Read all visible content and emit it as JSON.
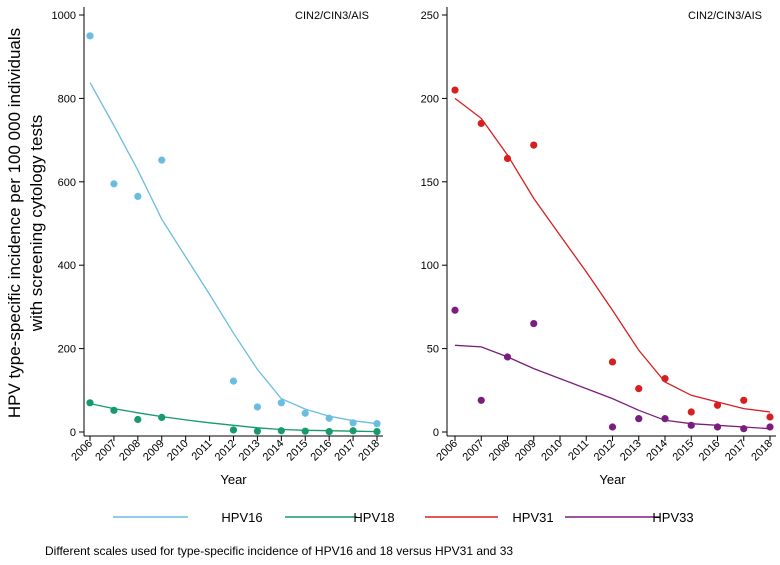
{
  "y_axis_title_line1": "HPV type-specific incidence per 100 000 individuals",
  "y_axis_title_line2": "with screening cytology tests",
  "footnote": "Different scales used for type-specific incidence of HPV16 and 18 versus HPV31 and 33",
  "colors": {
    "HPV16": "#6bbde0",
    "HPV18": "#159a6b",
    "HPV31": "#d71f1f",
    "HPV33": "#7a1e7e"
  },
  "legend": [
    "HPV16",
    "HPV18",
    "HPV31",
    "HPV33"
  ],
  "chart_data": [
    {
      "type": "scatter",
      "title": "CIN2/CIN3/AIS",
      "xlabel": "Year",
      "ylabel": "",
      "categories": [
        "2006",
        "2007",
        "2008",
        "2009",
        "2010",
        "2011",
        "2012",
        "2013",
        "2014",
        "2015",
        "2016",
        "2017",
        "2018"
      ],
      "ylim": [
        0,
        1000
      ],
      "yticks": [
        0,
        200,
        400,
        600,
        800,
        1000
      ],
      "series": [
        {
          "name": "HPV16",
          "points": [
            [
              2006,
              950
            ],
            [
              2007,
              595
            ],
            [
              2008,
              565
            ],
            [
              2009,
              652
            ],
            [
              2012,
              122
            ],
            [
              2013,
              60
            ],
            [
              2014,
              70
            ],
            [
              2015,
              45
            ],
            [
              2016,
              33
            ],
            [
              2017,
              22
            ],
            [
              2018,
              20
            ]
          ],
          "fit": [
            [
              2006,
              838
            ],
            [
              2007,
              735
            ],
            [
              2008,
              628
            ],
            [
              2009,
              510
            ],
            [
              2010,
              420
            ],
            [
              2011,
              330
            ],
            [
              2012,
              237
            ],
            [
              2013,
              150
            ],
            [
              2014,
              80
            ],
            [
              2015,
              55
            ],
            [
              2016,
              38
            ],
            [
              2017,
              27
            ],
            [
              2018,
              20
            ]
          ]
        },
        {
          "name": "HPV18",
          "points": [
            [
              2006,
              70
            ],
            [
              2007,
              52
            ],
            [
              2008,
              30
            ],
            [
              2009,
              35
            ],
            [
              2012,
              5
            ],
            [
              2013,
              2
            ],
            [
              2014,
              3
            ],
            [
              2015,
              2
            ],
            [
              2016,
              1
            ],
            [
              2017,
              3
            ],
            [
              2018,
              1
            ]
          ],
          "fit": [
            [
              2006,
              68
            ],
            [
              2007,
              56
            ],
            [
              2008,
              46
            ],
            [
              2009,
              37
            ],
            [
              2010,
              29
            ],
            [
              2011,
              22
            ],
            [
              2012,
              16
            ],
            [
              2013,
              10
            ],
            [
              2014,
              6
            ],
            [
              2015,
              4
            ],
            [
              2016,
              3
            ],
            [
              2017,
              2
            ],
            [
              2018,
              1
            ]
          ]
        }
      ]
    },
    {
      "type": "scatter",
      "title": "CIN2/CIN3/AIS",
      "xlabel": "Year",
      "ylabel": "",
      "categories": [
        "2006",
        "2007",
        "2008",
        "2009",
        "2010",
        "2011",
        "2012",
        "2013",
        "2014",
        "2015",
        "2016",
        "2017",
        "2018"
      ],
      "ylim": [
        0,
        250
      ],
      "yticks": [
        0,
        50,
        100,
        150,
        200,
        250
      ],
      "series": [
        {
          "name": "HPV31",
          "points": [
            [
              2006,
              205
            ],
            [
              2007,
              185
            ],
            [
              2008,
              164
            ],
            [
              2009,
              172
            ],
            [
              2012,
              42
            ],
            [
              2013,
              26
            ],
            [
              2014,
              32
            ],
            [
              2015,
              12
            ],
            [
              2016,
              16
            ],
            [
              2017,
              19
            ],
            [
              2018,
              9
            ]
          ],
          "fit": [
            [
              2006,
              200
            ],
            [
              2007,
              188
            ],
            [
              2008,
              166
            ],
            [
              2009,
              140
            ],
            [
              2010,
              118
            ],
            [
              2011,
              96
            ],
            [
              2012,
              73
            ],
            [
              2013,
              49
            ],
            [
              2014,
              30
            ],
            [
              2015,
              22
            ],
            [
              2016,
              18
            ],
            [
              2017,
              14
            ],
            [
              2018,
              12
            ]
          ]
        },
        {
          "name": "HPV33",
          "points": [
            [
              2006,
              73
            ],
            [
              2007,
              19
            ],
            [
              2008,
              45
            ],
            [
              2009,
              65
            ],
            [
              2012,
              3
            ],
            [
              2013,
              8
            ],
            [
              2014,
              8
            ],
            [
              2015,
              4
            ],
            [
              2016,
              3
            ],
            [
              2017,
              2
            ],
            [
              2018,
              3
            ]
          ],
          "fit": [
            [
              2006,
              52
            ],
            [
              2007,
              51
            ],
            [
              2008,
              45
            ],
            [
              2009,
              38
            ],
            [
              2010,
              32
            ],
            [
              2011,
              26
            ],
            [
              2012,
              20
            ],
            [
              2013,
              13
            ],
            [
              2014,
              7
            ],
            [
              2015,
              5
            ],
            [
              2016,
              4
            ],
            [
              2017,
              3
            ],
            [
              2018,
              2
            ]
          ]
        }
      ]
    }
  ]
}
